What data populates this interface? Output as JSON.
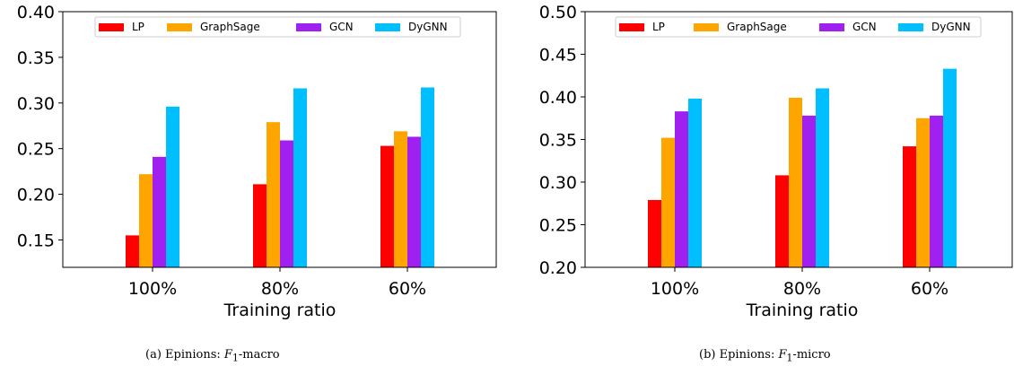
{
  "chart_data": [
    {
      "type": "bar",
      "caption": "(a) Epinions: F1-macro",
      "caption_prefix": "(a) Epinions:",
      "caption_metric": "F",
      "caption_sub": "1",
      "caption_suffix": "-macro",
      "xlabel": "Training ratio",
      "ylabel": "",
      "categories": [
        "100%",
        "80%",
        "60%"
      ],
      "ylim": [
        0.12,
        0.4
      ],
      "yticks": [
        "0.15",
        "0.20",
        "0.25",
        "0.30",
        "0.35",
        "0.40"
      ],
      "legend_position": "top",
      "grid": false,
      "series": [
        {
          "name": "LP",
          "color": "#ff0000",
          "values": [
            0.155,
            0.211,
            0.253
          ]
        },
        {
          "name": "GraphSage",
          "color": "#ffa500",
          "values": [
            0.222,
            0.279,
            0.269
          ]
        },
        {
          "name": "GCN",
          "color": "#a020f0",
          "values": [
            0.241,
            0.259,
            0.263
          ]
        },
        {
          "name": "DyGNN",
          "color": "#00bfff",
          "values": [
            0.296,
            0.316,
            0.317
          ]
        }
      ]
    },
    {
      "type": "bar",
      "caption": "(b) Epinions: F1-micro",
      "caption_prefix": "(b) Epinions:",
      "caption_metric": "F",
      "caption_sub": "1",
      "caption_suffix": "-micro",
      "xlabel": "Training ratio",
      "ylabel": "",
      "categories": [
        "100%",
        "80%",
        "60%"
      ],
      "ylim": [
        0.2,
        0.5
      ],
      "yticks": [
        "0.20",
        "0.25",
        "0.30",
        "0.35",
        "0.40",
        "0.45",
        "0.50"
      ],
      "legend_position": "top",
      "grid": false,
      "series": [
        {
          "name": "LP",
          "color": "#ff0000",
          "values": [
            0.279,
            0.308,
            0.342
          ]
        },
        {
          "name": "GraphSage",
          "color": "#ffa500",
          "values": [
            0.352,
            0.399,
            0.375
          ]
        },
        {
          "name": "GCN",
          "color": "#a020f0",
          "values": [
            0.383,
            0.378,
            0.378
          ]
        },
        {
          "name": "DyGNN",
          "color": "#00bfff",
          "values": [
            0.398,
            0.41,
            0.433
          ]
        }
      ]
    }
  ]
}
